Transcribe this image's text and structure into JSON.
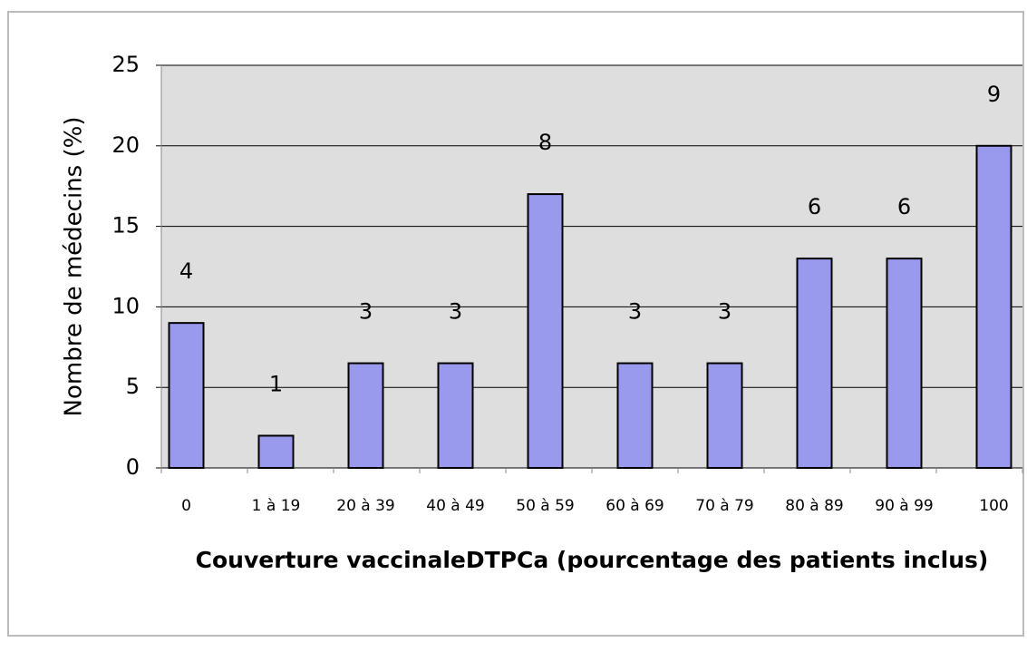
{
  "chart_data": {
    "type": "bar",
    "y_label": "Nombre de médecins (%)",
    "x_label": "Couverture vaccinaleDTPCa (pourcentage des patients inclus)",
    "categories": [
      "0",
      "1 à 19",
      "20 à 39",
      "40 à 49",
      "50 à 59",
      "60 à 69",
      "70 à 79",
      "80 à 89",
      "90 à 99",
      "100"
    ],
    "values": [
      9,
      2,
      6.5,
      6.5,
      17,
      6.5,
      6.5,
      13,
      13,
      20
    ],
    "counts": [
      4,
      1,
      3,
      3,
      8,
      3,
      3,
      6,
      6,
      9
    ],
    "color": "#9999ee",
    "ylim": [
      0,
      25
    ],
    "yticks": [
      0,
      5,
      10,
      15,
      20,
      25
    ],
    "grid": true
  }
}
